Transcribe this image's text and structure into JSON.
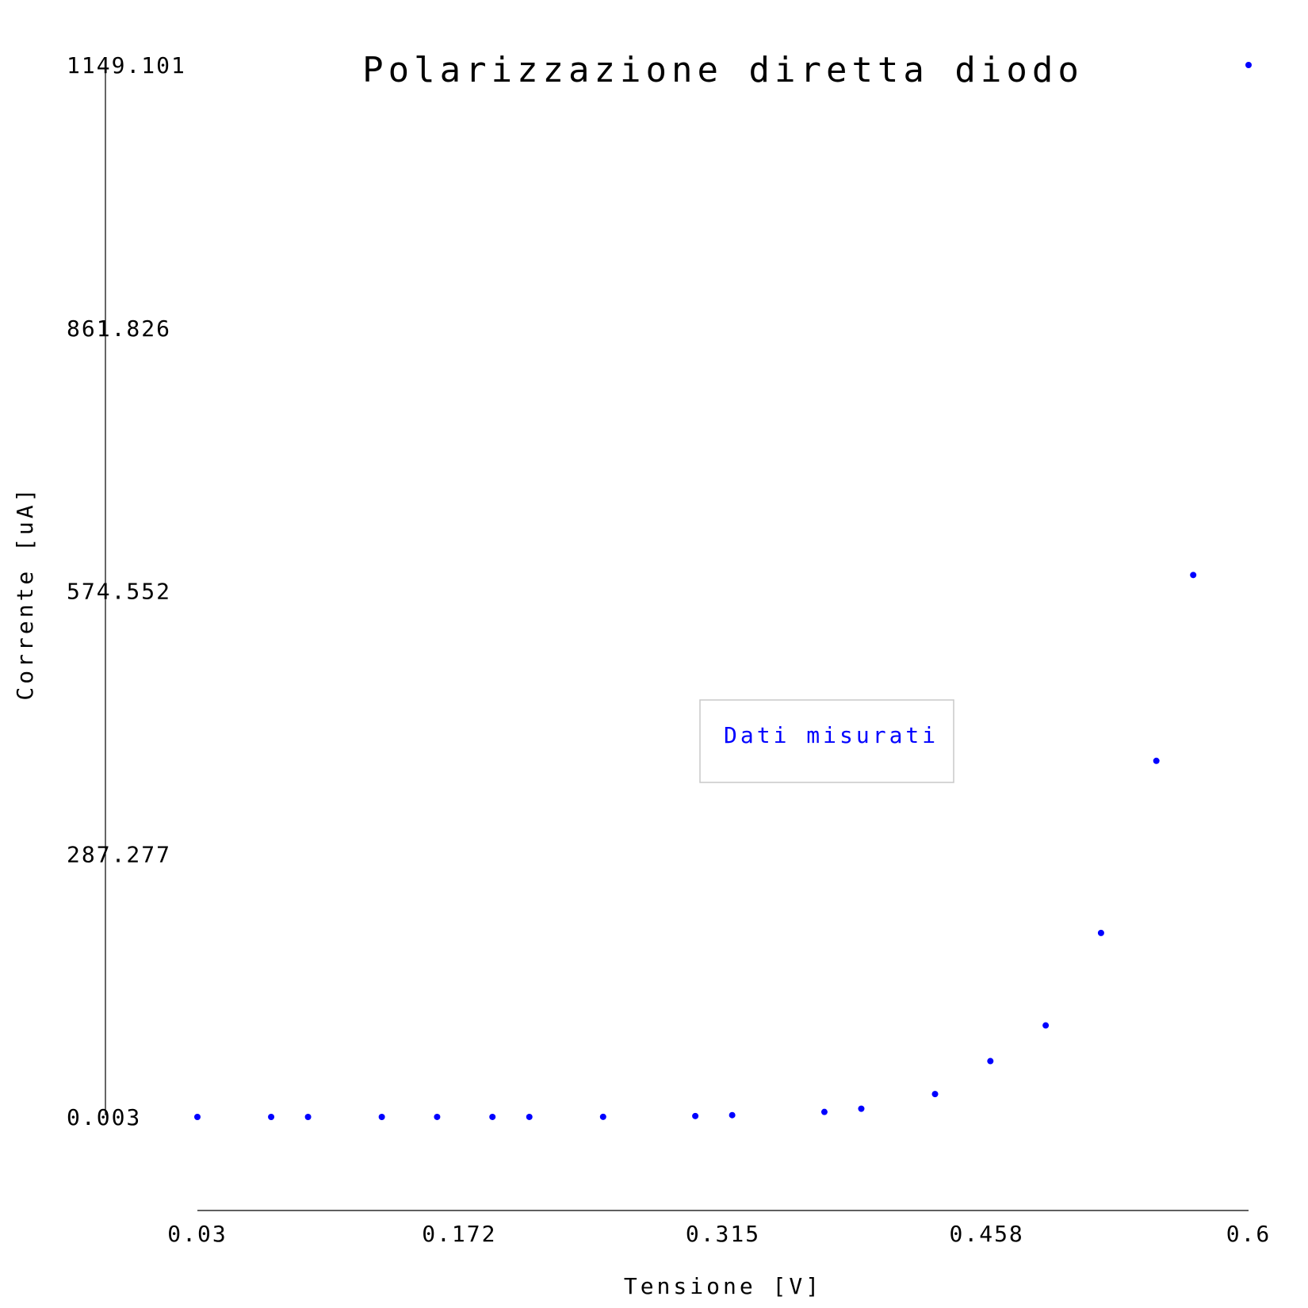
{
  "colors": {
    "series": "#0000ff",
    "axis": "#000000",
    "legend_border": "#c8c8c8"
  },
  "chart_data": {
    "type": "scatter",
    "title": "Polarizzazione diretta diodo",
    "xlabel": "Tensione [V]",
    "ylabel": "Corrente [uA]",
    "xlim": [
      0.03,
      0.6
    ],
    "ylim": [
      0.003,
      1149.101
    ],
    "x_ticks": [
      "0.03",
      "0.172",
      "0.315",
      "0.458",
      "0.6"
    ],
    "y_ticks": [
      "0.003",
      "287.277",
      "574.552",
      "861.826",
      "1149.101"
    ],
    "grid": false,
    "legend": {
      "position": "center-right",
      "entries": [
        "Dati misurati"
      ]
    },
    "series": [
      {
        "name": "Dati misurati",
        "points": [
          {
            "x": 0.03,
            "y": 0.003
          },
          {
            "x": 0.07,
            "y": 0.005
          },
          {
            "x": 0.09,
            "y": 0.007
          },
          {
            "x": 0.13,
            "y": 0.01
          },
          {
            "x": 0.16,
            "y": 0.02
          },
          {
            "x": 0.19,
            "y": 0.03
          },
          {
            "x": 0.21,
            "y": 0.05
          },
          {
            "x": 0.25,
            "y": 0.15
          },
          {
            "x": 0.3,
            "y": 1.0
          },
          {
            "x": 0.32,
            "y": 2.0
          },
          {
            "x": 0.37,
            "y": 5.5
          },
          {
            "x": 0.39,
            "y": 9.0
          },
          {
            "x": 0.43,
            "y": 25.0
          },
          {
            "x": 0.46,
            "y": 61.0
          },
          {
            "x": 0.49,
            "y": 100.0
          },
          {
            "x": 0.52,
            "y": 201.0
          },
          {
            "x": 0.55,
            "y": 389.0
          },
          {
            "x": 0.57,
            "y": 592.0
          },
          {
            "x": 0.6,
            "y": 1149.101
          }
        ]
      }
    ]
  }
}
